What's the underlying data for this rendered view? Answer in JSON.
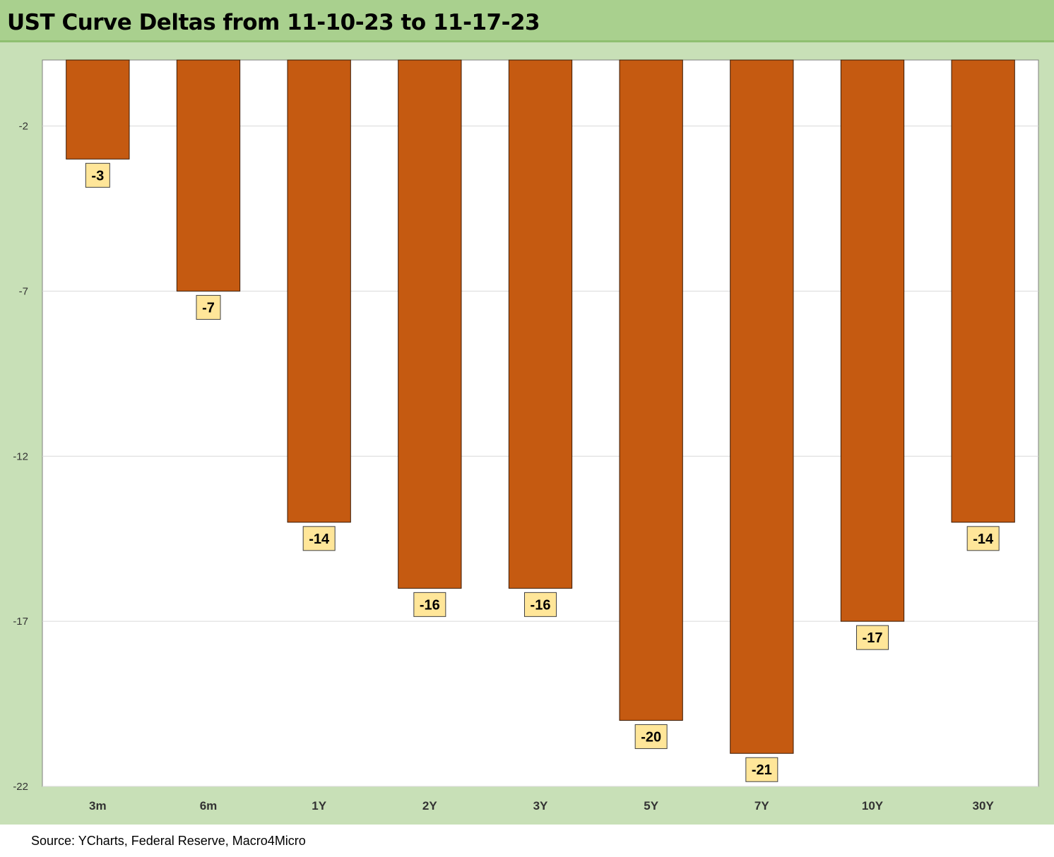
{
  "title": "UST Curve Deltas from 11-10-23 to 11-17-23",
  "source": "Source: YCharts, Federal Reserve, Macro4Micro",
  "colors": {
    "bar": "#c55a11",
    "data_label_bg": "#ffe699",
    "title_bar": "#a9d08e",
    "frame": "#c8e0b7"
  },
  "chart_data": {
    "type": "bar",
    "title": "UST Curve Deltas from 11-10-23 to 11-17-23",
    "categories": [
      "3m",
      "6m",
      "1Y",
      "2Y",
      "3Y",
      "5Y",
      "7Y",
      "10Y",
      "30Y"
    ],
    "values": [
      -3,
      -7,
      -14,
      -16,
      -16,
      -20,
      -21,
      -17,
      -14
    ],
    "data_labels": [
      "-3",
      "-7",
      "-14",
      "-16",
      "-16",
      "-20",
      "-21",
      "-17",
      "-14"
    ],
    "yticks": [
      -2,
      -7,
      -12,
      -17,
      -22
    ],
    "ylim": [
      -22,
      0
    ],
    "grid": "horizontal",
    "legend": "none"
  }
}
